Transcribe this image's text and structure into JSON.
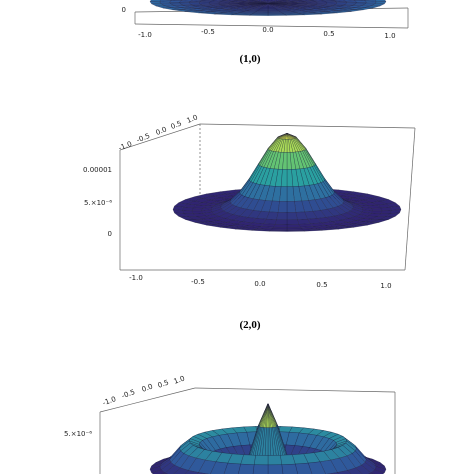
{
  "chart_data": [
    {
      "type": "surface",
      "caption": "(1,0)",
      "x_ticks": [
        "-1.0",
        "-0.5",
        "0.0",
        "0.5",
        "1.0"
      ],
      "z_ticks": [
        "0"
      ],
      "colormap": [
        "#30206e",
        "#2f5fa0",
        "#2aa3a0",
        "#79cf62",
        "#f2ee47"
      ],
      "shape": "bowl"
    },
    {
      "type": "surface",
      "caption": "(2,0)",
      "x_ticks": [
        "-1.0",
        "-0.5",
        "0.0",
        "0.5",
        "1.0"
      ],
      "y_ticks": [
        "-1.0",
        "-0.5",
        "0.0",
        "0.5",
        "1.0"
      ],
      "z_ticks": [
        "0",
        "5.×10⁻⁶",
        "0.00001"
      ],
      "colormap": [
        "#30206e",
        "#2f5fa0",
        "#2aa3a0",
        "#79cf62",
        "#f2ee47"
      ],
      "shape": "mexican-hat"
    },
    {
      "type": "surface",
      "caption": "",
      "y_ticks": [
        "-1.0",
        "-0.5",
        "0.0",
        "0.5",
        "1.0"
      ],
      "z_ticks": [
        "5.×10⁻⁶"
      ],
      "colormap": [
        "#30206e",
        "#2f5fa0",
        "#2aa3a0",
        "#79cf62",
        "#f2ee47"
      ],
      "shape": "ring-peak"
    }
  ]
}
